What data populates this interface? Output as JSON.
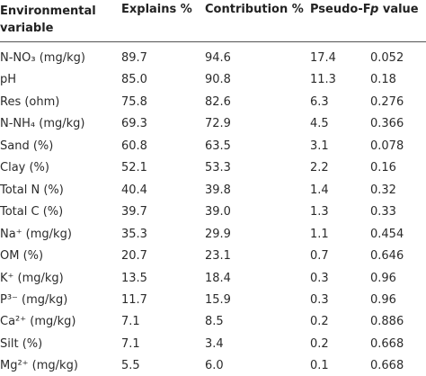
{
  "table": {
    "header": [
      "Environmental variable",
      "Explains %",
      "Contribution %",
      "Pseudo-F",
      [
        "p",
        " value"
      ]
    ],
    "rows": [
      [
        "N-NO₃ (mg/kg)",
        "89.7",
        "94.6",
        "17.4",
        "0.052"
      ],
      [
        "pH",
        "85.0",
        "90.8",
        "11.3",
        "0.18"
      ],
      [
        "Res (ohm)",
        "75.8",
        "82.6",
        "6.3",
        "0.276"
      ],
      [
        "N-NH₄ (mg/kg)",
        "69.3",
        "72.9",
        "4.5",
        "0.366"
      ],
      [
        "Sand (%)",
        "60.8",
        "63.5",
        "3.1",
        "0.078"
      ],
      [
        "Clay (%)",
        "52.1",
        "53.3",
        "2.2",
        "0.16"
      ],
      [
        "Total N (%)",
        "40.4",
        "39.8",
        "1.4",
        "0.32"
      ],
      [
        "Total C (%)",
        "39.7",
        "39.0",
        "1.3",
        "0.33"
      ],
      [
        "Na⁺ (mg/kg)",
        "35.3",
        "29.9",
        "1.1",
        "0.454"
      ],
      [
        "OM (%)",
        "20.7",
        "23.1",
        "0.7",
        "0.646"
      ],
      [
        "K⁺ (mg/kg)",
        "13.5",
        "18.4",
        "0.3",
        "0.96"
      ],
      [
        "P³⁻ (mg/kg)",
        "11.7",
        "15.9",
        "0.3",
        "0.96"
      ],
      [
        "Ca²⁺ (mg/kg)",
        "7.1",
        "8.5",
        "0.2",
        "0.886"
      ],
      [
        "Silt (%)",
        "7.1",
        "3.4",
        "0.2",
        "0.668"
      ],
      [
        "Mg²⁺ (mg/kg)",
        "5.5",
        "6.0",
        "0.1",
        "0.668"
      ]
    ]
  }
}
